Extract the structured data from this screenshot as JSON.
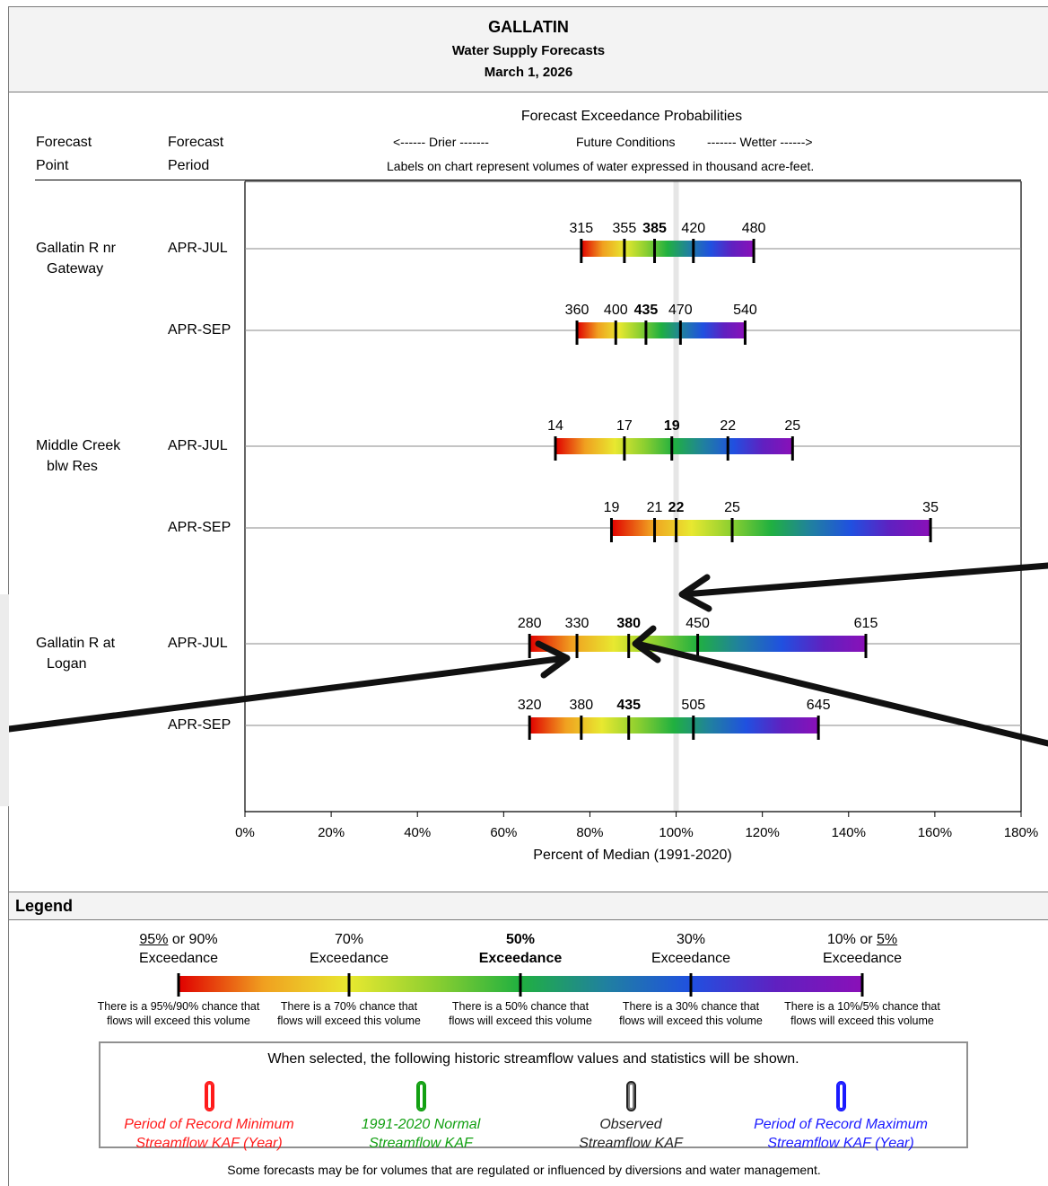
{
  "header": {
    "basin": "GALLATIN",
    "subtitle": "Water Supply Forecasts",
    "date": "March 1, 2026"
  },
  "columns": {
    "point_line1": "Forecast",
    "point_line2": "Point",
    "period_line1": "Forecast",
    "period_line2": "Period",
    "prob_title": "Forecast Exceedance Probabilities",
    "drier": "<------ Drier -------",
    "future": "Future Conditions",
    "wetter": "------- Wetter ------>",
    "note": "Labels on chart represent volumes of water expressed in thousand acre-feet."
  },
  "chart_data": {
    "type": "bar",
    "xlabel": "Percent of Median (1991-2020)",
    "xlim": [
      0,
      180
    ],
    "xticks": [
      "0%",
      "20%",
      "40%",
      "60%",
      "80%",
      "100%",
      "120%",
      "140%",
      "160%",
      "180%"
    ],
    "reference_line_x": 100,
    "rows": [
      {
        "point": "Gallatin R nr Gateway",
        "point_lines": [
          "Gallatin R nr",
          "Gateway"
        ],
        "period": "APR-JUL",
        "pct": [
          78,
          88,
          95,
          104,
          118
        ],
        "labels": [
          "315",
          "355",
          "385",
          "420",
          "480"
        ]
      },
      {
        "point": "Gallatin R nr Gateway",
        "point_lines": [],
        "period": "APR-SEP",
        "pct": [
          77,
          86,
          93,
          101,
          116
        ],
        "labels": [
          "360",
          "400",
          "435",
          "470",
          "540"
        ]
      },
      {
        "point": "Middle Creek blw Res",
        "point_lines": [
          "Middle Creek",
          "blw Res"
        ],
        "period": "APR-JUL",
        "pct": [
          72,
          88,
          99,
          112,
          127
        ],
        "labels": [
          "14",
          "17",
          "19",
          "22",
          "25"
        ]
      },
      {
        "point": "Middle Creek blw Res",
        "point_lines": [],
        "period": "APR-SEP",
        "pct": [
          85,
          95,
          100,
          113,
          159
        ],
        "labels": [
          "19",
          "21",
          "22",
          "25",
          "35"
        ]
      },
      {
        "point": "Gallatin R at Logan",
        "point_lines": [
          "Gallatin R at",
          "Logan"
        ],
        "period": "APR-JUL",
        "pct": [
          66,
          77,
          89,
          105,
          144
        ],
        "labels": [
          "280",
          "330",
          "380",
          "450",
          "615"
        ]
      },
      {
        "point": "Gallatin R at Logan",
        "point_lines": [],
        "period": "APR-SEP",
        "pct": [
          66,
          78,
          89,
          104,
          133
        ],
        "labels": [
          "320",
          "380",
          "435",
          "505",
          "645"
        ]
      }
    ],
    "gradient_colors": [
      "#e00000",
      "#f0a020",
      "#e8e830",
      "#8ccf30",
      "#20b040",
      "#2080a0",
      "#2050e0",
      "#6020c0",
      "#8a10b8"
    ]
  },
  "legend": {
    "title": "Legend",
    "cols": [
      {
        "line1a": "95%",
        "line1b": " or 90%",
        "line2": "Exceedance",
        "bold": false,
        "underline": "a",
        "desc1": "There is a 95%/90% chance that",
        "desc2": "flows will exceed this volume"
      },
      {
        "line1a": "70%",
        "line1b": "",
        "line2": "Exceedance",
        "bold": false,
        "underline": "",
        "desc1": "There is a 70% chance that",
        "desc2": "flows will exceed this volume"
      },
      {
        "line1a": "50%",
        "line1b": "",
        "line2": "Exceedance",
        "bold": true,
        "underline": "",
        "desc1": "There is a 50% chance that",
        "desc2": "flows will exceed this volume"
      },
      {
        "line1a": "30%",
        "line1b": "",
        "line2": "Exceedance",
        "bold": false,
        "underline": "",
        "desc1": "There is a 30% chance that",
        "desc2": "flows will exceed this volume"
      },
      {
        "line1a": "10% or ",
        "line1b": "5%",
        "line2": "Exceedance",
        "bold": false,
        "underline": "b",
        "desc1": "There is a 10%/5% chance that",
        "desc2": "flows will exceed this volume"
      }
    ],
    "hist_title": "When selected, the following historic streamflow values and statistics will be shown.",
    "hist_items": [
      {
        "line1": "Period of Record Minimum",
        "line2": "Streamflow KAF (Year)",
        "color": "#ff1a1a"
      },
      {
        "line1": "1991-2020 Normal",
        "line2": "Streamflow KAF",
        "color": "#12a012"
      },
      {
        "line1": "Observed",
        "line2": "Streamflow KAF",
        "color": "#222222"
      },
      {
        "line1": "Period of Record Maximum",
        "line2": "Streamflow KAF (Year)",
        "color": "#1a1aff"
      }
    ],
    "footnote": "Some forecasts may be for volumes that are regulated or influenced by diversions and water management."
  }
}
